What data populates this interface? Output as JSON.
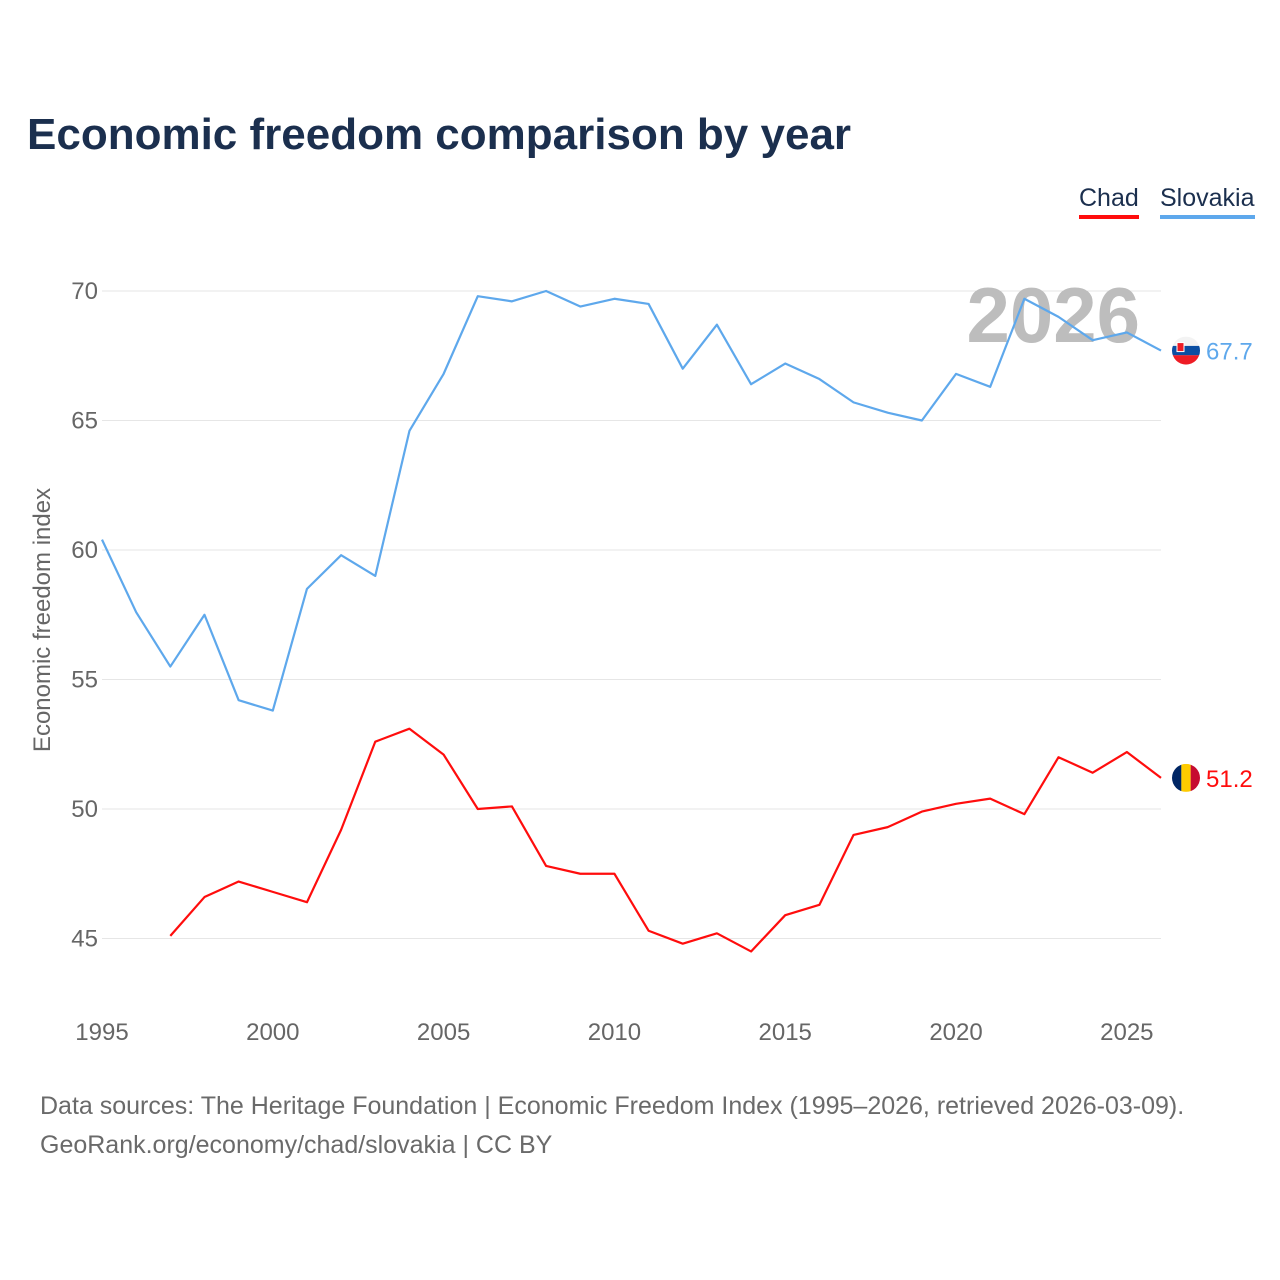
{
  "chart_data": {
    "type": "line",
    "title": "Economic freedom comparison by year",
    "ylabel": "Economic freedom index",
    "xlabel": "",
    "xlim": [
      1995,
      2026
    ],
    "ylim": [
      43,
      71
    ],
    "yticks": [
      45,
      50,
      55,
      60,
      65,
      70
    ],
    "xticks": [
      1995,
      2000,
      2005,
      2010,
      2015,
      2020,
      2025
    ],
    "grid": true,
    "legend_position": "top-right",
    "year_watermark": "2026",
    "series": [
      {
        "name": "Chad",
        "color": "#ff0d0d",
        "end_label": "51.2",
        "x": [
          1997,
          1998,
          1999,
          2000,
          2001,
          2002,
          2003,
          2004,
          2005,
          2006,
          2007,
          2008,
          2009,
          2010,
          2011,
          2012,
          2013,
          2014,
          2015,
          2016,
          2017,
          2018,
          2019,
          2020,
          2021,
          2022,
          2023,
          2024,
          2025,
          2026
        ],
        "values": [
          45.1,
          46.6,
          47.2,
          46.8,
          46.4,
          49.2,
          52.6,
          53.1,
          52.1,
          50.0,
          50.1,
          47.8,
          47.5,
          47.5,
          45.3,
          44.8,
          45.2,
          44.5,
          45.9,
          46.3,
          49.0,
          49.3,
          49.9,
          50.2,
          50.4,
          49.8,
          52.0,
          51.4,
          52.2,
          51.2
        ]
      },
      {
        "name": "Slovakia",
        "color": "#5ea8ec",
        "end_label": "67.7",
        "x": [
          1995,
          1996,
          1997,
          1998,
          1999,
          2000,
          2001,
          2002,
          2003,
          2004,
          2005,
          2006,
          2007,
          2008,
          2009,
          2010,
          2011,
          2012,
          2013,
          2014,
          2015,
          2016,
          2017,
          2018,
          2019,
          2020,
          2021,
          2022,
          2023,
          2024,
          2025,
          2026
        ],
        "values": [
          60.4,
          57.6,
          55.5,
          57.5,
          54.2,
          53.8,
          58.5,
          59.8,
          59.0,
          64.6,
          66.8,
          69.8,
          69.6,
          70.0,
          69.4,
          69.7,
          69.5,
          67.0,
          68.7,
          66.4,
          67.2,
          66.6,
          65.7,
          65.3,
          65.0,
          66.8,
          66.3,
          69.7,
          69.0,
          68.1,
          68.4,
          67.7
        ]
      }
    ]
  },
  "source": {
    "line1": "Data sources: The Heritage Foundation | Economic Freedom Index (1995–2026, retrieved 2026-03-09).",
    "line2": "GeoRank.org/economy/chad/slovakia | CC BY"
  }
}
